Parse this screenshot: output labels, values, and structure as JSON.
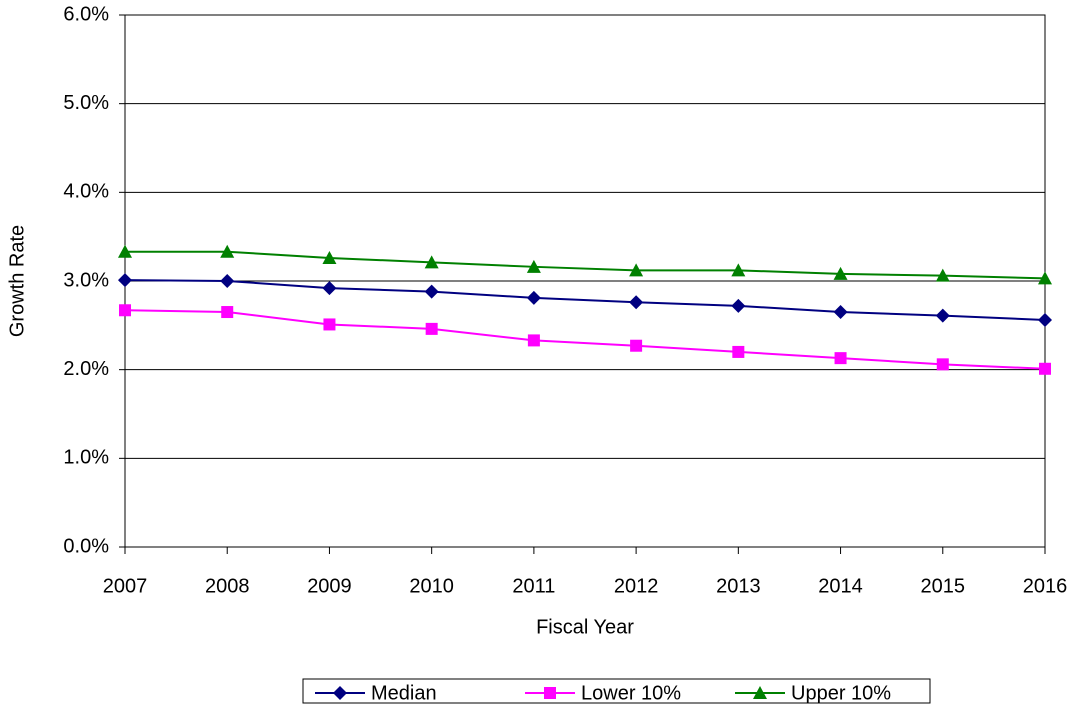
{
  "chart_data": {
    "type": "line",
    "x_label": "Fiscal Year",
    "y_label": "Growth Rate",
    "x": [
      2007,
      2008,
      2009,
      2010,
      2011,
      2012,
      2013,
      2014,
      2015,
      2016
    ],
    "xlim": [
      2007,
      2016
    ],
    "xticks": [
      2007,
      2008,
      2009,
      2010,
      2011,
      2012,
      2013,
      2014,
      2015,
      2016
    ],
    "ylim": [
      0,
      6
    ],
    "yticks": [
      {
        "value": 0,
        "label": "0.0%"
      },
      {
        "value": 1,
        "label": "1.0%"
      },
      {
        "value": 2,
        "label": "2.0%"
      },
      {
        "value": 3,
        "label": "3.0%"
      },
      {
        "value": 4,
        "label": "4.0%"
      },
      {
        "value": 5,
        "label": "5.0%"
      },
      {
        "value": 6,
        "label": "6.0%"
      }
    ],
    "grid": true,
    "legend": "bottom",
    "series": [
      {
        "name": "Median",
        "color": "#000080",
        "marker": "diamond",
        "values": [
          3.01,
          3.0,
          2.92,
          2.88,
          2.81,
          2.76,
          2.72,
          2.65,
          2.61,
          2.56
        ]
      },
      {
        "name": "Lower 10%",
        "color": "#ff00ff",
        "marker": "square",
        "values": [
          2.67,
          2.65,
          2.51,
          2.46,
          2.33,
          2.27,
          2.2,
          2.13,
          2.06,
          2.01
        ]
      },
      {
        "name": "Upper 10%",
        "color": "#008000",
        "marker": "triangle",
        "values": [
          3.33,
          3.33,
          3.26,
          3.21,
          3.16,
          3.12,
          3.12,
          3.08,
          3.06,
          3.03
        ]
      }
    ]
  }
}
